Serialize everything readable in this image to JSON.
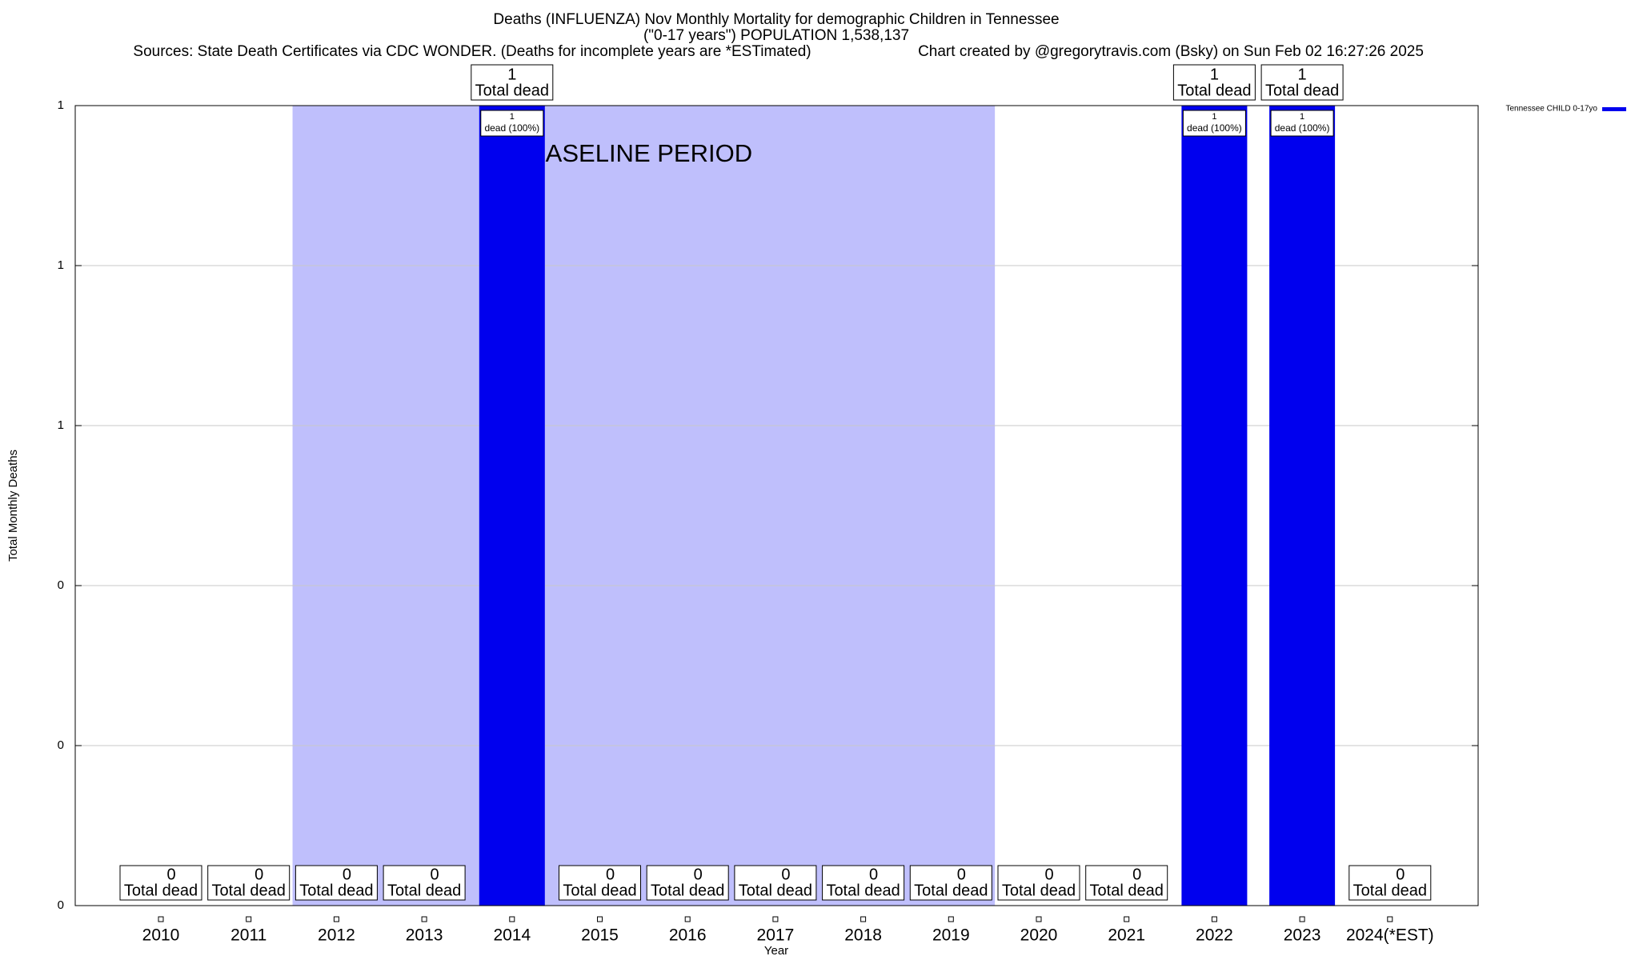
{
  "chart_data": {
    "type": "bar",
    "title": "Deaths (INFLUENZA) Nov Monthly Mortality for demographic Children in Tennessee",
    "title_line2": "(\"0-17 years\") POPULATION 1,538,137",
    "subtitle": "Sources: State Death Certificates via CDC WONDER. (Deaths for incomplete years are *ESTimated)",
    "credit": "Chart created by @gregorytravis.com (Bsky) on Sun Feb 02 16:27:26 2025",
    "x_label": "Year",
    "y_label": "Total Monthly Deaths",
    "categories": [
      "2010",
      "2011",
      "2012",
      "2013",
      "2014",
      "2015",
      "2016",
      "2017",
      "2018",
      "2019",
      "2020",
      "2021",
      "2022",
      "2023",
      "2024(*EST)"
    ],
    "series": [
      {
        "name": "Tennessee CHILD 0-17yo",
        "color": "#0000ee",
        "values": [
          0,
          0,
          0,
          0,
          1,
          0,
          0,
          0,
          0,
          0,
          0,
          0,
          1,
          1,
          0
        ]
      }
    ],
    "total_label": "Total dead",
    "bar_label": "dead (100%)",
    "baseline": {
      "label": "BASELINE PERIOD",
      "start": "2012",
      "end": "2019",
      "color": "#bfbffc"
    },
    "ylim": [
      0,
      1
    ],
    "yticks": [
      0,
      {
        "value": 0.2,
        "label": "0"
      },
      {
        "value": 0.4,
        "label": "0"
      },
      {
        "value": 0.6,
        "label": "1"
      },
      {
        "value": 0.8,
        "label": "1"
      },
      1
    ],
    "grid": true,
    "legend": "top-right"
  }
}
